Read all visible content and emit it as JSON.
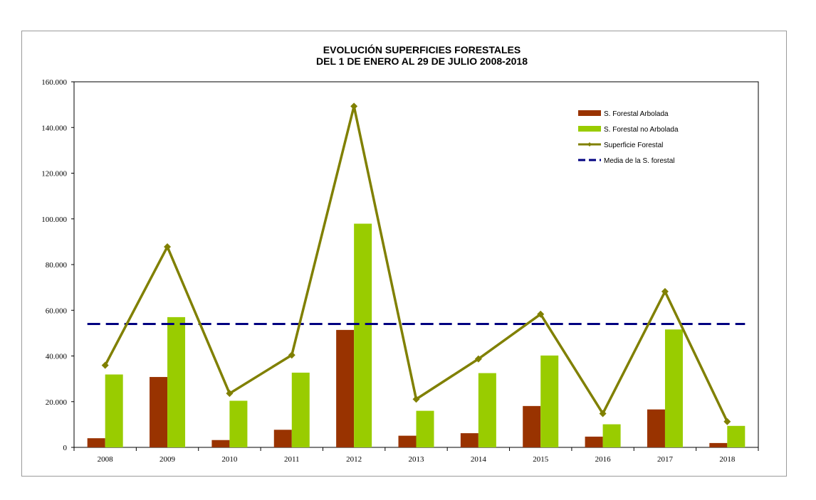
{
  "chart_data": {
    "type": "bar",
    "title": "EVOLUCIÓN SUPERFICIES FORESTALES",
    "subtitle": "DEL 1 DE ENERO AL 29 DE JULIO 2008-2018",
    "xlabel": "",
    "ylabel": "",
    "ylim": [
      0,
      160000
    ],
    "y_ticks": [
      0,
      20000,
      40000,
      60000,
      80000,
      100000,
      120000,
      140000,
      160000
    ],
    "y_tick_labels": [
      "0",
      "20.000",
      "40.000",
      "60.000",
      "80.000",
      "100.000",
      "120.000",
      "140.000",
      "160.000"
    ],
    "categories": [
      "2008",
      "2009",
      "2010",
      "2011",
      "2012",
      "2013",
      "2014",
      "2015",
      "2016",
      "2017",
      "2018"
    ],
    "series": [
      {
        "name": "S. Forestal Arbolada",
        "kind": "bar",
        "color": "#993300",
        "values": [
          4000,
          30800,
          3200,
          7700,
          51400,
          5100,
          6200,
          18100,
          4700,
          16600,
          1900
        ]
      },
      {
        "name": "S. Forestal no Arbolada",
        "kind": "bar",
        "color": "#99CC00",
        "values": [
          31900,
          57000,
          20400,
          32700,
          97900,
          16000,
          32500,
          40200,
          10100,
          51600,
          9400
        ]
      },
      {
        "name": "Superficie Forestal",
        "kind": "line",
        "color": "#808000",
        "values": [
          35900,
          87800,
          23600,
          40400,
          149300,
          21100,
          38700,
          58300,
          14800,
          68200,
          11300
        ]
      },
      {
        "name": "Media de la S. forestal",
        "kind": "dashed-line",
        "color": "#000080",
        "values": [
          54000,
          54000,
          54000,
          54000,
          54000,
          54000,
          54000,
          54000,
          54000,
          54000,
          54000
        ]
      }
    ],
    "legend_position": "top-right"
  }
}
